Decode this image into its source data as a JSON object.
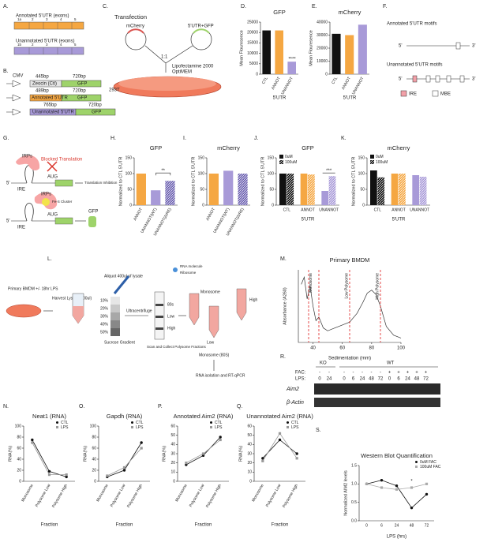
{
  "panels": {
    "letters": [
      "A.",
      "B.",
      "C.",
      "D.",
      "E.",
      "F.",
      "G.",
      "H.",
      "I.",
      "J.",
      "K.",
      "L.",
      "M.",
      "N.",
      "O.",
      "P.",
      "Q.",
      "R.",
      "S."
    ]
  },
  "diagrams": {
    "A": {
      "annotated_title": "Annotated 5'UTR (exons)",
      "annotated_exons": [
        "1a",
        "2",
        "3",
        "4",
        "5"
      ],
      "unannotated_title": "Unannotated 5'UTR (exons)",
      "unannotated_exons": [
        "1b",
        "2",
        "3",
        "4",
        "5"
      ]
    },
    "B": {
      "promoter": "CMV",
      "rows": [
        {
          "bp1": "445bp",
          "insert": "Zeocin (Ctl)",
          "bp2": "720bp",
          "reporter": "GFP"
        },
        {
          "bp1": "489bp",
          "insert": "Annotated 5'UTR",
          "bp2": "720bp",
          "reporter": "GFP"
        },
        {
          "bp1": "765bp",
          "insert": "Unannotated 5'UTR",
          "bp2": "720bp",
          "reporter": "GFP"
        }
      ]
    },
    "C": {
      "title": "Transfection",
      "plasmid1": "mCherry",
      "plasmid2": "5'UTR+GFP",
      "ratio": "1:1",
      "reagent1": "Lipofectamine 2000",
      "reagent2": "OptiMEM",
      "cells": "293T"
    },
    "F": {
      "annotated_title": "Annotated 5'UTR motifs",
      "unannotated_title": "Unannotated 5'UTR motifs",
      "five": "5'",
      "three": "3'",
      "legend": [
        "IRE",
        "MBE"
      ]
    },
    "G": {
      "irps": "IRPs",
      "blocked": "Blocked Translation",
      "aug": "AUG",
      "inhibition": "Translation Inhibition",
      "fes": "Fe-S Cluster",
      "gfp": "GFP",
      "ire": "IRE",
      "five": "5'",
      "three": "3'"
    },
    "L": {
      "cells": "Primary BMDM +/- 18hr LPS",
      "harvest": "Harvest Lysate (400ul)",
      "aliquot": "Aliquot 400ul of lysate",
      "gradient_steps": [
        "10%",
        "20%",
        "30%",
        "40%",
        "50%"
      ],
      "gradient": "Sucrose Gradient",
      "spin": "Ultracentrifuge",
      "fractions": [
        "80s",
        "Low",
        "High"
      ],
      "scan": "Scan and Collect Polysome Fractions",
      "rna": "RNA molecule",
      "ribosome": "Ribosome",
      "tubes": [
        "Monosome",
        "Low",
        "High"
      ],
      "monosome80": "Monosome (80S)",
      "readout": "RNA isolation and RT-qPCR"
    },
    "R": {
      "ko": "KO",
      "wt": "WT",
      "fac_label": "FAC:",
      "lps_label": "LPS:",
      "fac": [
        "-",
        "-",
        "-",
        "-",
        "-",
        "-",
        "-",
        "+",
        "+",
        "+",
        "+",
        "+"
      ],
      "lps": [
        "0",
        "24",
        "0",
        "6",
        "24",
        "48",
        "72",
        "0",
        "6",
        "24",
        "48",
        "72"
      ],
      "aim2": "Aim2",
      "actin": "β-Actin"
    }
  },
  "chart_data": [
    {
      "type": "bar",
      "title": "GFP",
      "ylabel": "Mean Flouresence",
      "xlabel": "5'UTR",
      "categories": [
        "CTL",
        "ANNOT",
        "UNANNOT"
      ],
      "colors": [
        "#111111",
        "#f5a742",
        "#a89ad8"
      ],
      "series": [
        {
          "values": [
            21000,
            21000,
            6000
          ]
        }
      ],
      "ylim": [
        0,
        25000
      ],
      "yticks": [
        0,
        5000,
        10000,
        15000,
        20000,
        25000
      ],
      "annotation": "****"
    },
    {
      "type": "bar",
      "title": "mCherry",
      "ylabel": "Mean Flouresence",
      "xlabel": "5'UTR",
      "categories": [
        "CTL",
        "ANNOT",
        "UNANNOT"
      ],
      "colors": [
        "#111111",
        "#f5a742",
        "#a89ad8"
      ],
      "series": [
        {
          "values": [
            31000,
            30000,
            38000
          ]
        }
      ],
      "ylim": [
        0,
        40000
      ],
      "yticks": [
        0,
        10000,
        20000,
        30000,
        40000
      ]
    },
    {
      "type": "bar",
      "title": "GFP",
      "ylabel": "Normalized to CTL 5'UTR",
      "categories": [
        "ANNOT",
        "UNANNOT(WT)",
        "UNANNOT(ΔIRE)"
      ],
      "colors": [
        "#f5a742",
        "#a89ad8",
        "#6a5fb0"
      ],
      "hatched": [
        false,
        false,
        true
      ],
      "series": [
        {
          "values": [
            100,
            47,
            77
          ]
        }
      ],
      "ylim": [
        0,
        150
      ],
      "yticks": [
        0,
        50,
        100,
        150
      ],
      "annotation": "**"
    },
    {
      "type": "bar",
      "title": "mCherry",
      "ylabel": "Normalized to CTL 5'UTR",
      "categories": [
        "ANNOT",
        "UNANNOT(WT)",
        "UNANNOT(ΔIRE)"
      ],
      "colors": [
        "#f5a742",
        "#a89ad8",
        "#6a5fb0"
      ],
      "hatched": [
        false,
        false,
        true
      ],
      "series": [
        {
          "values": [
            100,
            109,
            100
          ]
        }
      ],
      "ylim": [
        0,
        150
      ],
      "yticks": [
        0,
        50,
        100,
        150
      ]
    },
    {
      "type": "bar",
      "title": "GFP",
      "ylabel": "Normalized to CTL 5'UTR",
      "xlabel": "5'UTR",
      "categories": [
        "CTL",
        "ANNOT",
        "UNANNOT"
      ],
      "colors": [
        "#111111",
        "#f5a742",
        "#a89ad8"
      ],
      "series": [
        {
          "name": "0uM",
          "values": [
            100,
            100,
            45
          ]
        },
        {
          "name": "100uM",
          "values": [
            100,
            97,
            92
          ],
          "hatched": true
        }
      ],
      "ylim": [
        0,
        150
      ],
      "yticks": [
        0,
        50,
        100,
        150
      ],
      "annotation": "***"
    },
    {
      "type": "bar",
      "title": "mCherry",
      "ylabel": "Normalized to CTL 5'UTR",
      "xlabel": "5'UTR",
      "categories": [
        "CTL",
        "ANNOT",
        "UNANNOT"
      ],
      "colors": [
        "#111111",
        "#f5a742",
        "#a89ad8"
      ],
      "series": [
        {
          "name": "0uM",
          "values": [
            110,
            100,
            95
          ]
        },
        {
          "name": "100uM",
          "values": [
            88,
            100,
            90
          ],
          "hatched": true
        }
      ],
      "ylim": [
        0,
        150
      ],
      "yticks": [
        0,
        50,
        100,
        150
      ]
    },
    {
      "type": "profile",
      "title": "Primary BMDM",
      "ylabel": "Absorbance (A260)",
      "xlabel": "Sedimentation (mm)",
      "x": [
        32,
        34,
        36,
        38,
        40,
        42,
        44,
        47,
        50,
        55,
        60,
        65,
        70,
        74,
        77,
        80,
        83,
        86,
        90,
        95,
        100
      ],
      "values": [
        0.8,
        0.9,
        0.6,
        0.78,
        0.5,
        0.3,
        0.35,
        0.2,
        0.16,
        0.2,
        0.24,
        0.28,
        0.4,
        0.55,
        0.68,
        0.72,
        0.66,
        0.5,
        0.22,
        0.1,
        0.06
      ],
      "xlim": [
        30,
        100
      ],
      "xticks": [
        40,
        60,
        80,
        100
      ],
      "ylim": [
        0,
        1
      ],
      "dividers": [
        37,
        44,
        65,
        86
      ],
      "region_labels": [
        "Monosome",
        "Low Polysome",
        "High Polysome"
      ]
    },
    {
      "type": "line",
      "title": "Neat1 (RNA)",
      "ylabel": "RNA(%)",
      "xlabel": "Fraction",
      "categories": [
        "Monosome",
        "Polysome Low",
        "Polysome High"
      ],
      "series": [
        {
          "name": "CTL",
          "color": "#111111",
          "values": [
            75,
            18,
            8
          ]
        },
        {
          "name": "LPS",
          "color": "#999999",
          "values": [
            70,
            12,
            12
          ]
        }
      ],
      "ylim": [
        0,
        100
      ],
      "yticks": [
        0,
        20,
        40,
        60,
        80,
        100
      ]
    },
    {
      "type": "line",
      "title": "Gapdh (RNA)",
      "ylabel": "RNA(%)",
      "xlabel": "Fraction",
      "categories": [
        "Monosome",
        "Polysome Low",
        "Polysome High"
      ],
      "series": [
        {
          "name": "CTL",
          "color": "#111111",
          "values": [
            8,
            20,
            70
          ]
        },
        {
          "name": "LPS",
          "color": "#999999",
          "values": [
            10,
            25,
            60
          ]
        }
      ],
      "ylim": [
        0,
        100
      ],
      "yticks": [
        0,
        20,
        40,
        60,
        80,
        100
      ]
    },
    {
      "type": "line",
      "title": "Annotated Aim2 (RNA)",
      "ylabel": "RNA(%)",
      "xlabel": "Fraction",
      "categories": [
        "Monosome",
        "Polysome Low",
        "Polysome High"
      ],
      "series": [
        {
          "name": "CTL",
          "color": "#111111",
          "values": [
            18,
            28,
            48
          ]
        },
        {
          "name": "LPS",
          "color": "#999999",
          "values": [
            20,
            30,
            45
          ]
        }
      ],
      "ylim": [
        0,
        60
      ],
      "yticks": [
        0,
        10,
        20,
        30,
        40,
        50,
        60
      ]
    },
    {
      "type": "line",
      "title": "Unannotated Aim2 (RNA)",
      "ylabel": "RNA(%)",
      "xlabel": "Fraction",
      "categories": [
        "Monosome",
        "Polysome Low",
        "Polysome High"
      ],
      "series": [
        {
          "name": "CTL",
          "color": "#111111",
          "values": [
            25,
            45,
            30
          ]
        },
        {
          "name": "LPS",
          "color": "#999999",
          "values": [
            22,
            52,
            25
          ]
        }
      ],
      "ylim": [
        0,
        60
      ],
      "yticks": [
        0,
        10,
        20,
        30,
        40,
        50,
        60
      ]
    },
    {
      "type": "line",
      "title": "Western Blot Quantification",
      "ylabel": "Normalized AIM2 levels",
      "xlabel": "LPS (hrs)",
      "categories": [
        "0",
        "6",
        "24",
        "48",
        "72"
      ],
      "series": [
        {
          "name": "0uM FAC",
          "color": "#111111",
          "values": [
            1,
            1.1,
            0.95,
            0.35,
            0.72
          ]
        },
        {
          "name": "100uM FAC",
          "color": "#aaaaaa",
          "values": [
            1,
            0.9,
            0.85,
            0.9,
            1.0
          ]
        }
      ],
      "ylim": [
        0,
        1.5
      ],
      "yticks": [
        {
          "value": 0,
          "label": "0.0"
        },
        0.5,
        {
          "value": 1,
          "label": "1.0"
        },
        1.5
      ],
      "annotation": "*"
    }
  ]
}
